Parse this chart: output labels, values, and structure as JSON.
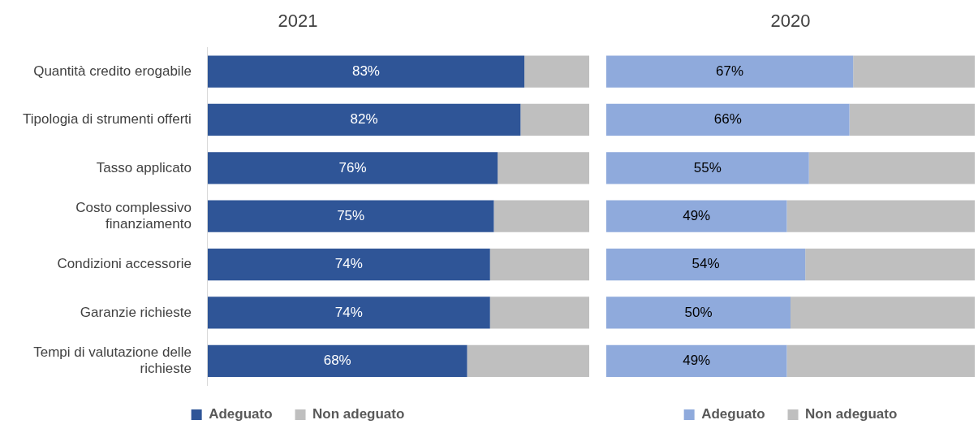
{
  "chart_data": [
    {
      "type": "bar",
      "orientation": "horizontal",
      "stacked": true,
      "title": "2021",
      "categories": [
        "Quantità credito erogabile",
        "Tipologia di strumenti offerti",
        "Tasso applicato",
        "Costo complessivo finanziamento",
        "Condizioni accessorie",
        "Garanzie richieste",
        "Tempi di valutazione delle richieste"
      ],
      "series": [
        {
          "name": "Adeguato",
          "color": "#2f5597",
          "values": [
            83,
            82,
            76,
            75,
            74,
            74,
            68
          ],
          "value_labels": [
            "83%",
            "82%",
            "76%",
            "75%",
            "74%",
            "74%",
            "68%"
          ]
        },
        {
          "name": "Non adeguato",
          "color": "#bfbfbf",
          "values": [
            17,
            18,
            24,
            25,
            26,
            26,
            32
          ]
        }
      ],
      "xlim": [
        0,
        100
      ],
      "tick_labels": "y",
      "grid": false,
      "legend": "bottom"
    },
    {
      "type": "bar",
      "orientation": "horizontal",
      "stacked": true,
      "title": "2020",
      "categories": [
        null,
        null,
        null,
        null,
        null,
        null,
        null
      ],
      "series": [
        {
          "name": "Adeguato",
          "color": "#8faadc",
          "values": [
            67,
            66,
            55,
            49,
            54,
            50,
            49
          ],
          "value_labels": [
            "67%",
            "66%",
            "55%",
            "49%",
            "54%",
            "50%",
            "49%"
          ]
        },
        {
          "name": "Non adeguato",
          "color": "#bfbfbf",
          "values": [
            33,
            34,
            45,
            51,
            46,
            50,
            51
          ]
        }
      ],
      "xlim": [
        0,
        100
      ],
      "tick_labels": false,
      "grid": false,
      "legend": "bottom"
    }
  ]
}
